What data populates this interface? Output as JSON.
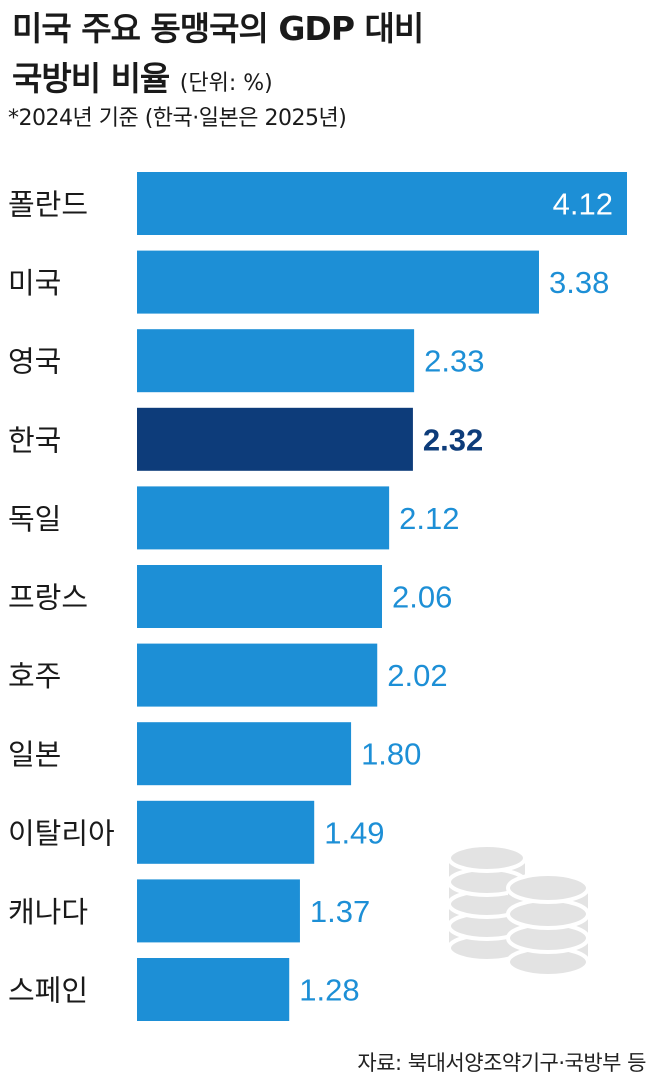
{
  "header": {
    "title_line1": "미국 주요 동맹국의 GDP 대비",
    "title_line2": "국방비 비율",
    "unit": "(단위: %)",
    "note": "*2024년 기준 (한국·일본은 2025년)"
  },
  "footer": {
    "source": "자료: 북대서양조약기구·국방부 등"
  },
  "colors": {
    "bar": "#1d8fd6",
    "highlight": "#0d3c7a",
    "label": "#1d8fd6",
    "icon": "#e3e3e3"
  },
  "icon": "coin-stack-icon",
  "chart_data": {
    "type": "bar",
    "orientation": "horizontal",
    "categories": [
      "폴란드",
      "미국",
      "영국",
      "한국",
      "독일",
      "프랑스",
      "호주",
      "일본",
      "이탈리아",
      "캐나다",
      "스페인"
    ],
    "values": [
      4.12,
      3.38,
      2.33,
      2.32,
      2.12,
      2.06,
      2.02,
      1.8,
      1.49,
      1.37,
      1.28
    ],
    "value_labels": [
      "4.12",
      "3.38",
      "2.33",
      "2.32",
      "2.12",
      "2.06",
      "2.02",
      "1.80",
      "1.49",
      "1.37",
      "1.28"
    ],
    "highlight": "한국",
    "xlim": [
      0,
      4.12
    ],
    "grid": false
  }
}
